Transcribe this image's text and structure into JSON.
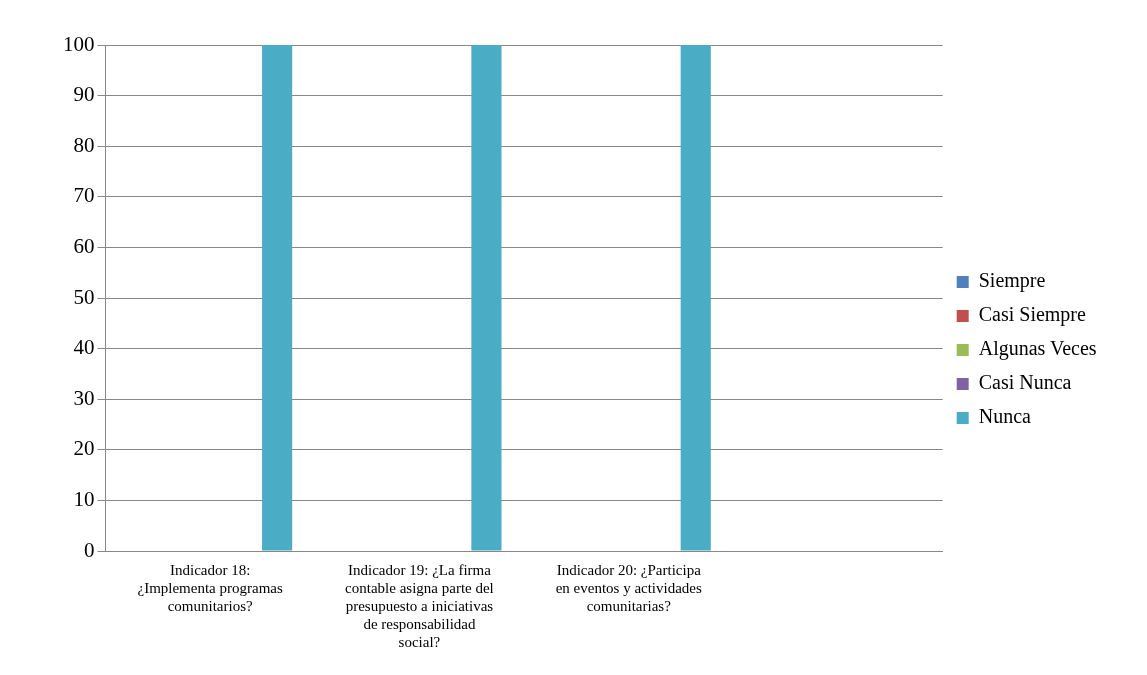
{
  "chart_data": {
    "type": "bar",
    "categories": [
      "Indicador 18: ¿Implementa programas comunitarios?",
      "Indicador 19: ¿La firma contable asigna parte del presupuesto a iniciativas de responsabilidad social?",
      "Indicador 20: ¿Participa en eventos y actividades comunitarias?",
      null
    ],
    "series": [
      {
        "name": "Siempre",
        "color": "#4f81bd",
        "values": [
          0,
          0,
          0,
          null
        ]
      },
      {
        "name": "Casi Siempre",
        "color": "#c0504d",
        "values": [
          0,
          0,
          0,
          null
        ]
      },
      {
        "name": "Algunas Veces",
        "color": "#9bbb59",
        "values": [
          0,
          0,
          0,
          null
        ]
      },
      {
        "name": "Casi Nunca",
        "color": "#8064a2",
        "values": [
          0,
          0,
          0,
          null
        ]
      },
      {
        "name": "Nunca",
        "color": "#4bacc6",
        "values": [
          100,
          100,
          100,
          null
        ]
      }
    ],
    "ylim": [
      0,
      100
    ],
    "yticks": [
      0,
      10,
      20,
      30,
      40,
      50,
      60,
      70,
      80,
      90,
      100
    ],
    "grid": "y",
    "legend": "right"
  }
}
